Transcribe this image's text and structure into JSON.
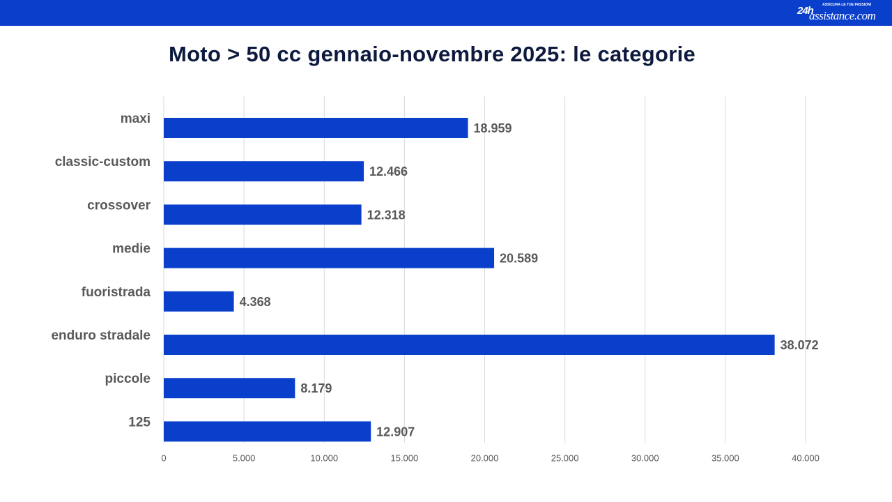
{
  "logo": {
    "number": "24h",
    "name": "assistance.com",
    "tagline": "ASSICURA LE TUE PASSIONI"
  },
  "colors": {
    "header_bar": "#0a3fcb",
    "bar_fill": "#0a3fcb",
    "gridline": "#d9d9d9",
    "label_text": "#595959",
    "title_text": "#0d1a3e"
  },
  "chart_data": {
    "type": "bar",
    "orientation": "horizontal",
    "title": "Moto > 50 cc gennaio-novembre 2025: le categorie",
    "categories": [
      "maxi",
      "classic-custom",
      "crossover",
      "medie",
      "fuoristrada",
      "enduro stradale",
      "piccole",
      "125"
    ],
    "values": [
      18959,
      12466,
      12318,
      20589,
      4368,
      38072,
      8179,
      12907
    ],
    "value_labels": [
      "18.959",
      "12.466",
      "12.318",
      "20.589",
      "4.368",
      "38.072",
      "8.179",
      "12.907"
    ],
    "xlim": [
      0,
      40000
    ],
    "x_ticks": [
      0,
      5000,
      10000,
      15000,
      20000,
      25000,
      30000,
      35000,
      40000
    ],
    "x_tick_labels": [
      "0",
      "5.000",
      "10.000",
      "15.000",
      "20.000",
      "25.000",
      "30.000",
      "35.000",
      "40.000"
    ],
    "xlabel": "",
    "ylabel": "",
    "grid": "vertical",
    "legend": "none"
  }
}
